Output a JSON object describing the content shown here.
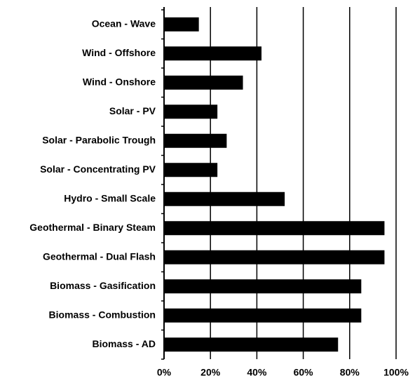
{
  "chart_data": {
    "type": "hbar",
    "categories": [
      "Ocean - Wave",
      "Wind - Offshore",
      "Wind - Onshore",
      "Solar - PV",
      "Solar - Parabolic Trough",
      "Solar - Concentrating PV",
      "Hydro - Small Scale",
      "Geothermal - Binary Steam",
      "Geothermal - Dual Flash",
      "Biomass - Gasification",
      "Biomass - Combustion",
      "Biomass - AD"
    ],
    "values": [
      15,
      42,
      34,
      23,
      27,
      23,
      52,
      95,
      95,
      85,
      85,
      75
    ],
    "color": "#000000",
    "xlim": [
      0,
      100
    ],
    "xticks": [
      {
        "value": 0,
        "label": "0%"
      },
      {
        "value": 20,
        "label": "20%"
      },
      {
        "value": 40,
        "label": "40%"
      },
      {
        "value": 60,
        "label": "60%"
      },
      {
        "value": 80,
        "label": "80%"
      },
      {
        "value": 100,
        "label": "100%"
      }
    ],
    "grid": true
  }
}
